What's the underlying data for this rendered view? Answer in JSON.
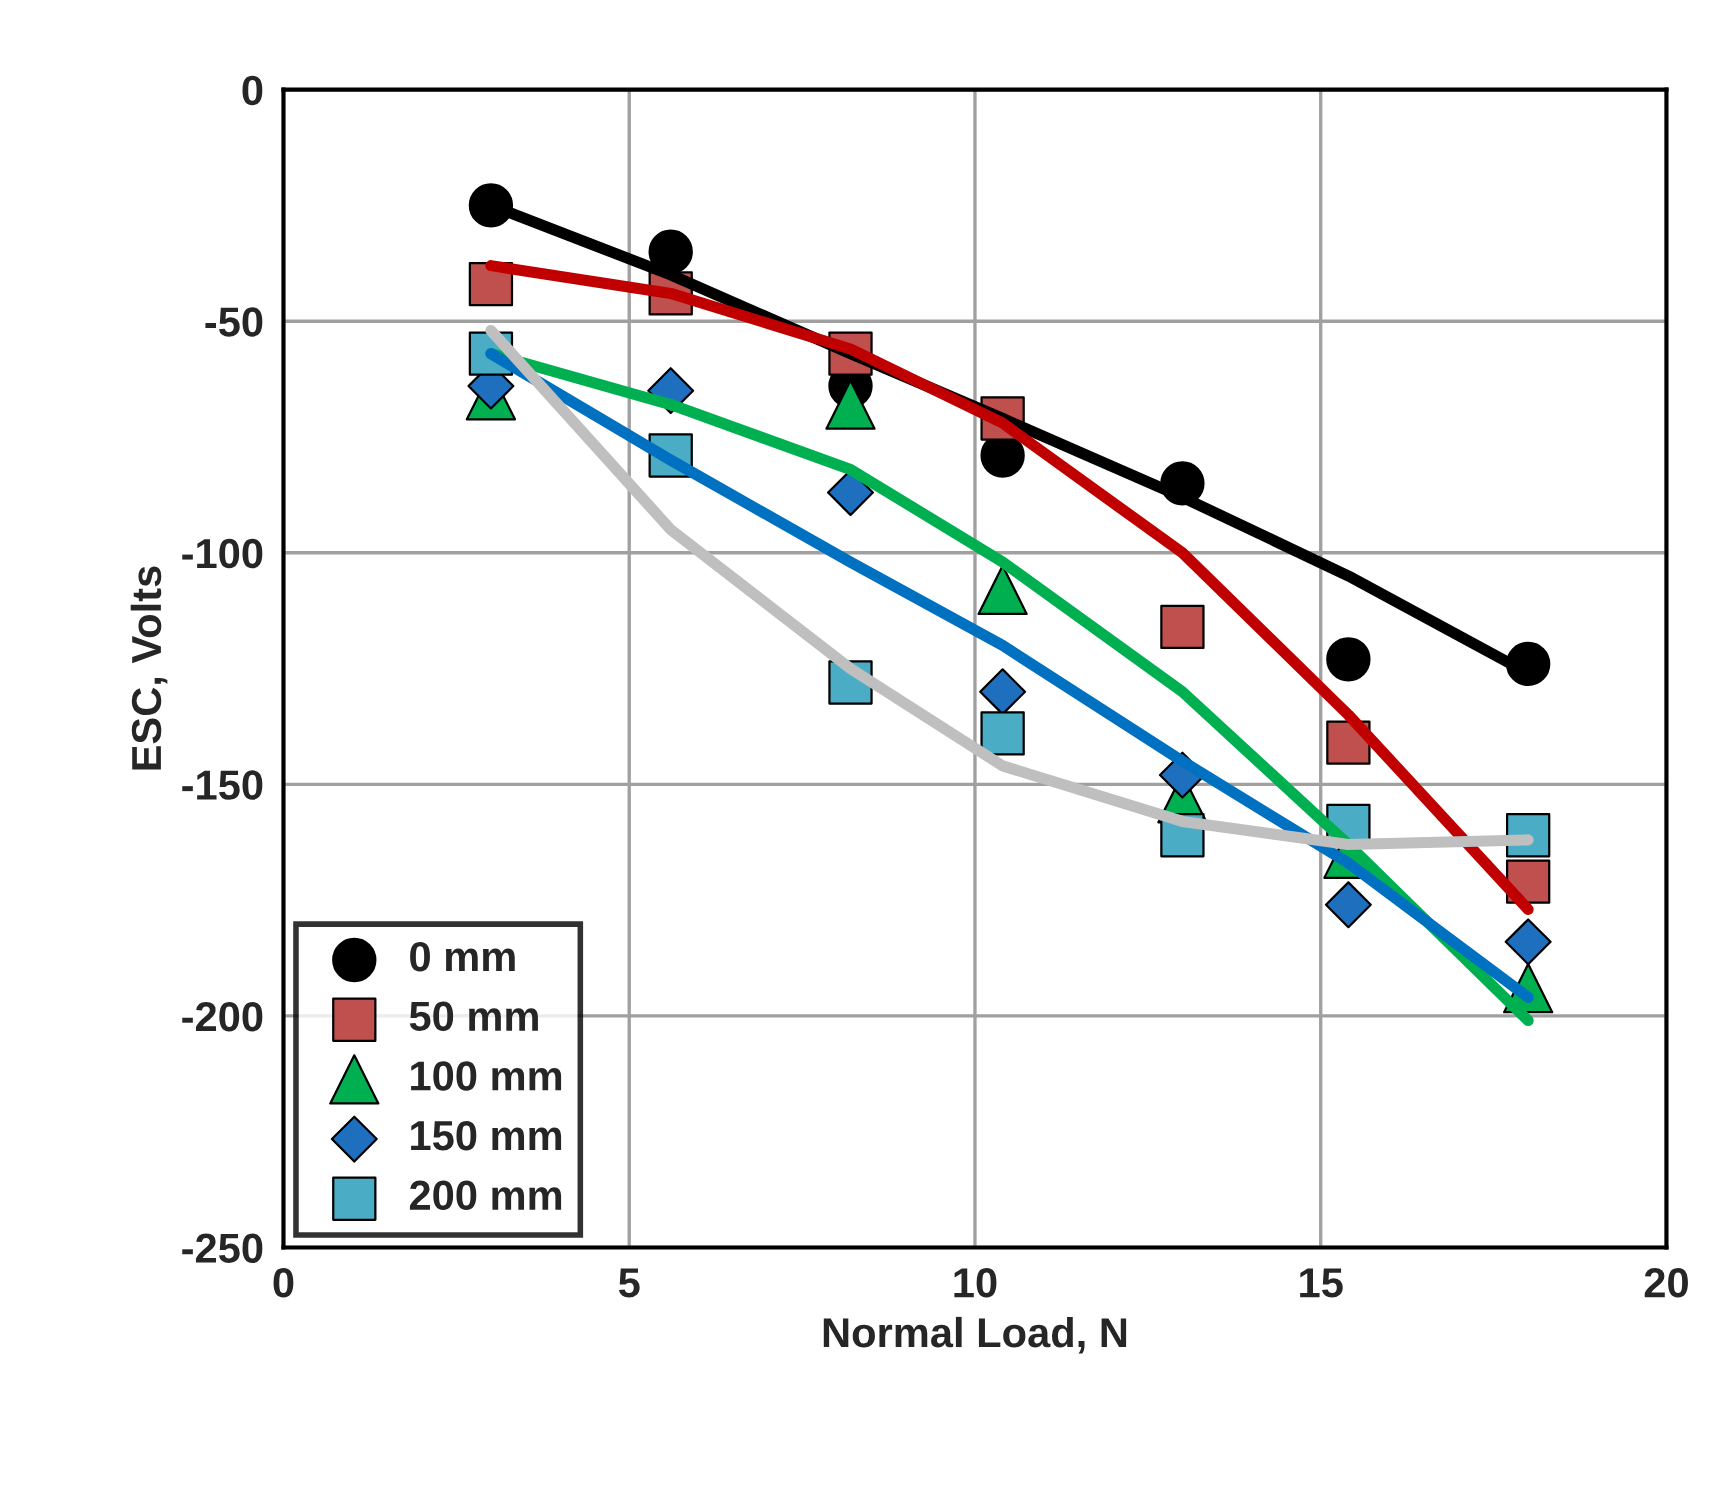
{
  "chart_data": {
    "type": "scatter",
    "xlabel": "Normal Load, N",
    "ylabel": "ESC, Volts",
    "xlim": [
      0,
      20
    ],
    "ylim": [
      -250,
      0
    ],
    "xticks": [
      0,
      5,
      10,
      15,
      20
    ],
    "yticks": [
      -250,
      -200,
      -150,
      -100,
      -50,
      0
    ],
    "grid": true,
    "legend": "bottom left",
    "x": [
      3,
      5.6,
      8.2,
      10.4,
      13,
      15.4,
      18
    ],
    "series": [
      {
        "name": "0 mm",
        "color": "#000000",
        "marker": "circle",
        "values": [
          -25,
          -35,
          -64,
          -79,
          -85,
          -123,
          -124
        ]
      },
      {
        "name": "50 mm",
        "color": "#c0504d",
        "marker": "square",
        "values": [
          -42,
          -44,
          -57,
          -71,
          -116,
          -141,
          -171
        ]
      },
      {
        "name": "100 mm",
        "color": "#00b050",
        "marker": "triangle",
        "values": [
          -66,
          null,
          -68,
          -108,
          -153,
          -165,
          -194
        ]
      },
      {
        "name": "150 mm",
        "color": "#1f6fbf",
        "marker": "diamond",
        "values": [
          -64,
          -65,
          -87,
          -130,
          -148,
          -176,
          -184
        ]
      },
      {
        "name": "200 mm",
        "color": "#4bacc6",
        "marker": "square",
        "values": [
          -57,
          -79,
          -128,
          -139,
          -161,
          -159,
          -161
        ]
      },
      {
        "type": "line",
        "color": "#000000",
        "values": [
          -25,
          -40,
          -57,
          -71,
          -88,
          -105,
          -126
        ]
      },
      {
        "type": "line",
        "color": "#c00000",
        "values": [
          -38,
          -44,
          -56,
          -72,
          -100,
          -135,
          -177
        ]
      },
      {
        "type": "line",
        "color": "#00b050",
        "values": [
          -57,
          -68,
          -82,
          -102,
          -130,
          -163,
          -201
        ]
      },
      {
        "type": "line",
        "color": "#0070c0",
        "values": [
          -57,
          -80,
          -102,
          -120,
          -145,
          -167,
          -196
        ]
      },
      {
        "type": "line",
        "color": "#bfbfbf",
        "values": [
          -52,
          -95,
          -125,
          -146,
          -158,
          -163,
          -162
        ]
      }
    ]
  }
}
